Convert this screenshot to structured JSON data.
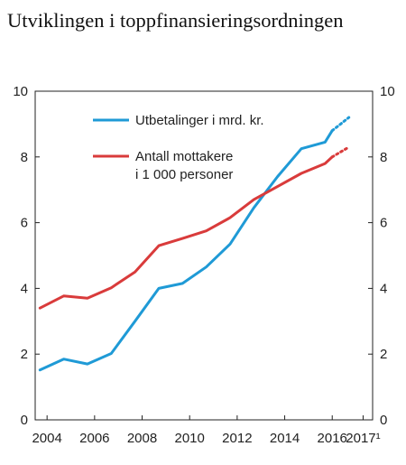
{
  "title": "Utviklingen i toppfinansieringsordningen",
  "chart_data": {
    "type": "line",
    "title": "Utviklingen i toppfinansieringsordningen",
    "xlabel": "",
    "ylabel": "",
    "xlim": [
      2003.5,
      2017.7
    ],
    "ylim": [
      0,
      10
    ],
    "y_ticks": [
      0,
      2,
      4,
      6,
      8,
      10
    ],
    "x_ticks": [
      {
        "value": 2004,
        "label": "2004"
      },
      {
        "value": 2006,
        "label": "2006"
      },
      {
        "value": 2008,
        "label": "2008"
      },
      {
        "value": 2010,
        "label": "2010"
      },
      {
        "value": 2012,
        "label": "2012"
      },
      {
        "value": 2014,
        "label": "2014"
      },
      {
        "value": 2016,
        "label": "2016"
      },
      {
        "value": 2017.3,
        "label": "2017¹"
      }
    ],
    "grid": false,
    "legend_position": "top-left",
    "series": [
      {
        "name": "Utbetalinger i mrd. kr.",
        "legend_lines": [
          "Utbetalinger i mrd. kr."
        ],
        "color": "#1f9ad6",
        "x": [
          2003.7,
          2004.7,
          2005.7,
          2006.7,
          2007.7,
          2008.7,
          2009.7,
          2010.7,
          2011.7,
          2012.7,
          2013.7,
          2014.7,
          2015.7,
          2016.0
        ],
        "values": [
          1.52,
          1.85,
          1.7,
          2.02,
          3.0,
          4.0,
          4.15,
          4.65,
          5.35,
          6.45,
          7.4,
          8.25,
          8.45,
          8.8
        ],
        "projection": {
          "x": [
            2016.0,
            2016.7
          ],
          "values": [
            8.8,
            9.2
          ]
        }
      },
      {
        "name": "Antall mottakere i 1 000 personer",
        "legend_lines": [
          "Antall mottakere",
          "i 1 000 personer"
        ],
        "color": "#d93b3b",
        "x": [
          2003.7,
          2004.7,
          2005.7,
          2006.7,
          2007.7,
          2008.7,
          2009.7,
          2010.7,
          2011.7,
          2012.7,
          2013.7,
          2014.7,
          2015.7,
          2016.0
        ],
        "values": [
          3.4,
          3.77,
          3.7,
          4.02,
          4.5,
          5.3,
          5.52,
          5.75,
          6.15,
          6.7,
          7.1,
          7.5,
          7.8,
          8.0
        ],
        "projection": {
          "x": [
            2016.0,
            2016.7
          ],
          "values": [
            8.0,
            8.3
          ]
        }
      }
    ]
  }
}
